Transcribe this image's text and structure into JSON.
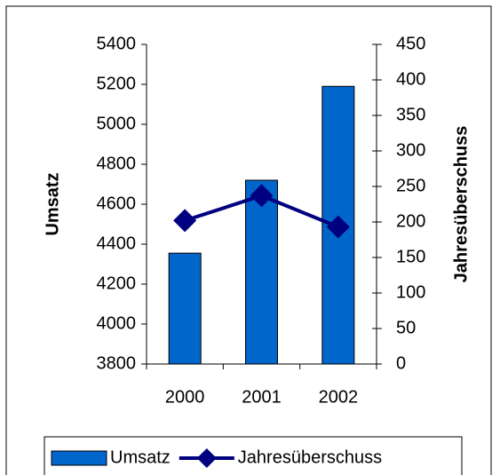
{
  "chart_data": {
    "type": "bar",
    "categories": [
      "2000",
      "2001",
      "2002"
    ],
    "ylabel": "Umsatz",
    "y2label": "Jahresüberschuss",
    "ylim": [
      3800,
      5400
    ],
    "yticks": [
      3800,
      4000,
      4200,
      4400,
      4600,
      4800,
      5000,
      5200,
      5400
    ],
    "y2lim": [
      0,
      450
    ],
    "y2ticks": [
      0,
      50,
      100,
      150,
      200,
      250,
      300,
      350,
      400,
      450
    ],
    "series": [
      {
        "name": "Umsatz",
        "type": "bar",
        "color": "#0066cc",
        "values": [
          4355,
          4720,
          5190
        ]
      },
      {
        "name": "Jahresüberschuss",
        "type": "line",
        "axis": "y2",
        "color": "#000080",
        "values": [
          202,
          237,
          193
        ]
      }
    ],
    "legend": "bottom"
  }
}
